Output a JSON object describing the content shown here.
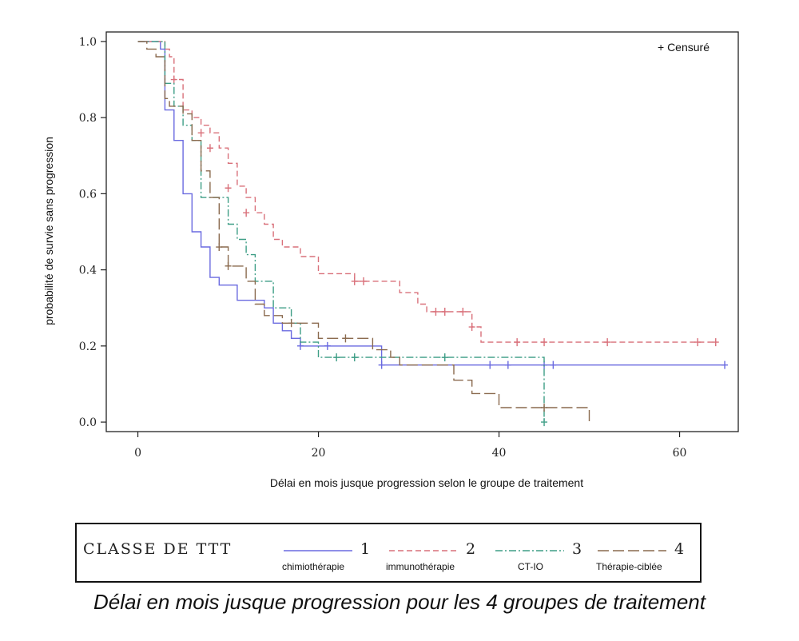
{
  "chart_data": {
    "type": "line",
    "xlabel": "Délai en mois jusque progression selon le groupe de traitement",
    "ylabel": "probabilité de survie sans progression",
    "xlim": [
      -3.5,
      66.5
    ],
    "ylim": [
      -0.025,
      1.025
    ],
    "x_ticks": [
      "0",
      "20",
      "40",
      "60"
    ],
    "y_ticks": [
      "0.0",
      "0.2",
      "0.4",
      "0.6",
      "0.8",
      "1.0"
    ],
    "censor_legend": "+ Censuré",
    "legend_title": "CLASSE DE TTT",
    "caption": "Délai en mois jusque progression pour les 4 groupes de traitement",
    "series": [
      {
        "name": "1",
        "label": "chimiothérapie",
        "color": "#6a6ae0",
        "dash": "",
        "steps": [
          [
            0,
            1.0
          ],
          [
            2.5,
            0.98
          ],
          [
            3,
            0.82
          ],
          [
            4,
            0.74
          ],
          [
            5,
            0.6
          ],
          [
            6,
            0.5
          ],
          [
            7,
            0.46
          ],
          [
            8,
            0.38
          ],
          [
            9,
            0.36
          ],
          [
            11,
            0.32
          ],
          [
            14,
            0.3
          ],
          [
            15,
            0.26
          ],
          [
            16,
            0.24
          ],
          [
            17,
            0.22
          ],
          [
            18,
            0.2
          ],
          [
            27,
            0.15
          ],
          [
            65,
            0.15
          ]
        ],
        "censors": [
          [
            18,
            0.2
          ],
          [
            21,
            0.2
          ],
          [
            27,
            0.15
          ],
          [
            39,
            0.15
          ],
          [
            41,
            0.15
          ],
          [
            45,
            0.15
          ],
          [
            46,
            0.15
          ],
          [
            65,
            0.15
          ]
        ]
      },
      {
        "name": "2",
        "label": "immunothérapie",
        "color": "#d9707a",
        "dash": "7,4",
        "steps": [
          [
            0,
            1.0
          ],
          [
            3,
            0.98
          ],
          [
            3.5,
            0.96
          ],
          [
            4,
            0.9
          ],
          [
            5,
            0.82
          ],
          [
            6,
            0.8
          ],
          [
            7,
            0.78
          ],
          [
            8,
            0.76
          ],
          [
            9,
            0.72
          ],
          [
            10,
            0.68
          ],
          [
            11,
            0.62
          ],
          [
            12,
            0.59
          ],
          [
            13,
            0.55
          ],
          [
            14,
            0.52
          ],
          [
            15,
            0.48
          ],
          [
            16,
            0.46
          ],
          [
            18,
            0.435
          ],
          [
            20,
            0.39
          ],
          [
            24,
            0.37
          ],
          [
            29,
            0.34
          ],
          [
            31,
            0.31
          ],
          [
            32,
            0.29
          ],
          [
            37,
            0.25
          ],
          [
            38,
            0.21
          ],
          [
            64,
            0.21
          ]
        ],
        "censors": [
          [
            4,
            0.9
          ],
          [
            7,
            0.76
          ],
          [
            8,
            0.72
          ],
          [
            10,
            0.615
          ],
          [
            12,
            0.55
          ],
          [
            24,
            0.37
          ],
          [
            25,
            0.37
          ],
          [
            33,
            0.29
          ],
          [
            34,
            0.29
          ],
          [
            36,
            0.29
          ],
          [
            37,
            0.25
          ],
          [
            42,
            0.21
          ],
          [
            45,
            0.21
          ],
          [
            52,
            0.21
          ],
          [
            62,
            0.21
          ],
          [
            64,
            0.21
          ]
        ]
      },
      {
        "name": "3",
        "label": "CT-IO",
        "color": "#3e9e86",
        "dash": "9,3,2,3",
        "steps": [
          [
            0,
            1.0
          ],
          [
            3,
            0.89
          ],
          [
            4,
            0.83
          ],
          [
            5,
            0.78
          ],
          [
            6,
            0.74
          ],
          [
            7,
            0.59
          ],
          [
            9,
            0.59
          ],
          [
            10,
            0.52
          ],
          [
            11,
            0.48
          ],
          [
            12,
            0.44
          ],
          [
            13,
            0.37
          ],
          [
            15,
            0.3
          ],
          [
            17,
            0.26
          ],
          [
            18,
            0.21
          ],
          [
            20,
            0.17
          ],
          [
            45,
            0.17
          ],
          [
            45,
            0.0
          ]
        ],
        "censors": [
          [
            22,
            0.17
          ],
          [
            24,
            0.17
          ],
          [
            34,
            0.17
          ],
          [
            45,
            0.0
          ]
        ]
      },
      {
        "name": "4",
        "label": "Thérapie-ciblée",
        "color": "#8a6a4e",
        "dash": "14,5",
        "steps": [
          [
            0,
            1.0
          ],
          [
            1,
            0.98
          ],
          [
            2,
            0.96
          ],
          [
            3,
            0.85
          ],
          [
            3.5,
            0.83
          ],
          [
            5,
            0.81
          ],
          [
            6,
            0.74
          ],
          [
            7,
            0.66
          ],
          [
            8,
            0.59
          ],
          [
            9,
            0.46
          ],
          [
            10,
            0.41
          ],
          [
            12,
            0.37
          ],
          [
            13,
            0.31
          ],
          [
            14,
            0.28
          ],
          [
            16,
            0.26
          ],
          [
            20,
            0.22
          ],
          [
            26,
            0.19
          ],
          [
            28,
            0.17
          ],
          [
            29,
            0.15
          ],
          [
            35,
            0.11
          ],
          [
            37,
            0.075
          ],
          [
            40,
            0.038
          ],
          [
            50,
            0.0
          ]
        ],
        "censors": [
          [
            9,
            0.46
          ],
          [
            10,
            0.41
          ],
          [
            17,
            0.26
          ],
          [
            23,
            0.22
          ],
          [
            45,
            0.038
          ]
        ]
      }
    ]
  }
}
